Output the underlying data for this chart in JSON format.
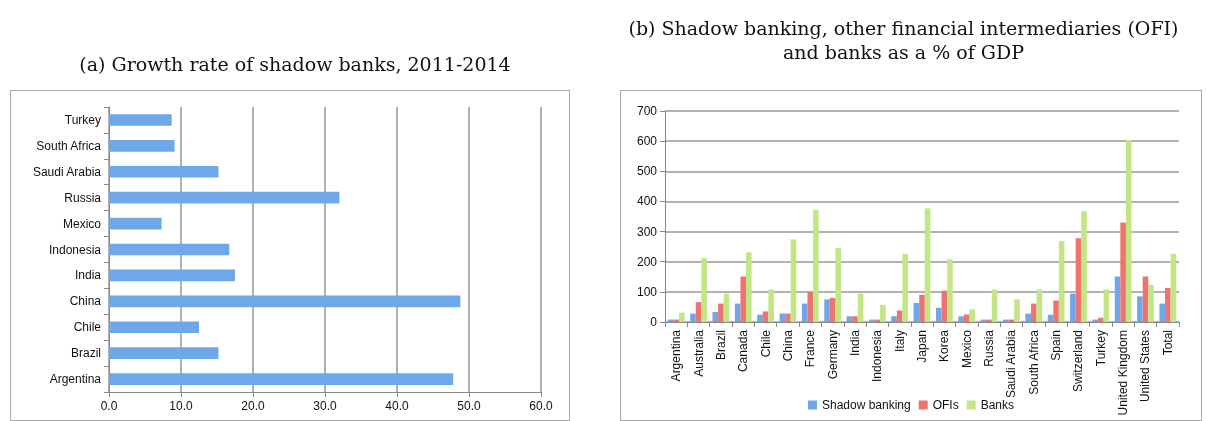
{
  "chart_data": [
    {
      "type": "bar",
      "title": "(a) Growth rate of shadow banks, 2011-2014",
      "orientation": "horizontal",
      "categories": [
        "Turkey",
        "South Africa",
        "Saudi Arabia",
        "Russia",
        "Mexico",
        "Indonesia",
        "India",
        "China",
        "Chile",
        "Brazil",
        "Argentina"
      ],
      "values": [
        8.7,
        9.1,
        15.2,
        32.0,
        7.3,
        16.7,
        17.5,
        48.8,
        12.5,
        15.2,
        47.8
      ],
      "color": "#6fa8e8",
      "xlim": [
        0,
        60
      ],
      "xticks": [
        {
          "value": 0,
          "label": "0.0"
        },
        {
          "value": 10,
          "label": "10.0"
        },
        {
          "value": 20,
          "label": "20.0"
        },
        {
          "value": 30,
          "label": "30.0"
        },
        {
          "value": 40,
          "label": "40.0"
        },
        {
          "value": 50,
          "label": "50.0"
        },
        {
          "value": 60,
          "label": "60.0"
        }
      ],
      "grid": "x"
    },
    {
      "type": "bar",
      "title": "(b) Shadow banking, other financial intermediaries (OFI) and banks as a % of GDP",
      "categories": [
        "Argentina",
        "Australia",
        "Brazil",
        "Canada",
        "Chile",
        "China",
        "France",
        "Germany",
        "India",
        "Indonesia",
        "Italy",
        "Japan",
        "Korea",
        "Mexico",
        "Russia",
        "Saudi Arabia",
        "South Africa",
        "Spain",
        "Switzerland",
        "Turkey",
        "United Kingdom",
        "United States",
        "Total"
      ],
      "series": [
        {
          "name": "Shadow banking",
          "color": "#6fa8e8",
          "values": [
            8,
            28,
            33,
            61,
            24,
            28,
            61,
            75,
            19,
            8,
            19,
            63,
            47,
            19,
            8,
            8,
            28,
            24,
            94,
            8,
            151,
            85,
            61
          ]
        },
        {
          "name": "OFIs",
          "color": "#ee7470",
          "values": [
            8,
            66,
            61,
            151,
            35,
            28,
            99,
            80,
            19,
            8,
            38,
            90,
            104,
            25,
            8,
            8,
            61,
            71,
            278,
            14,
            330,
            151,
            113
          ]
        },
        {
          "name": "Banks",
          "color": "#c3e684",
          "values": [
            31,
            212,
            94,
            231,
            108,
            274,
            372,
            245,
            94,
            57,
            226,
            377,
            208,
            42,
            108,
            75,
            108,
            269,
            368,
            108,
            604,
            123,
            226
          ]
        }
      ],
      "ylim": [
        0,
        700
      ],
      "yticks": [
        0,
        100,
        200,
        300,
        400,
        500,
        600,
        700
      ],
      "grid": "y",
      "legend": "bottom"
    }
  ]
}
